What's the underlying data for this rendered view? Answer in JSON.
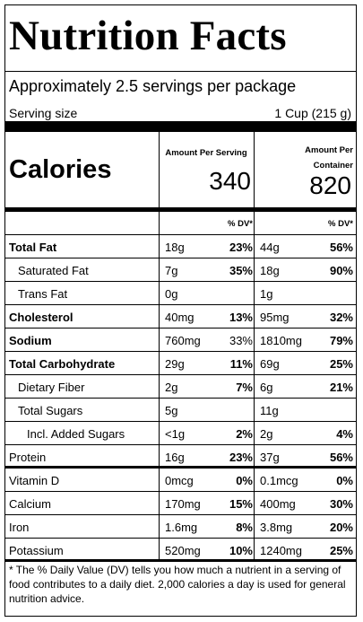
{
  "title": "Nutrition Facts",
  "servings_per_package": "Approximately 2.5 servings per package",
  "serving_size_label": "Serving size",
  "serving_size_value": "1 Cup (215 g)",
  "calories_label": "Calories",
  "col1_header": "Amount Per Serving",
  "col2_header_line1": "Amount Per",
  "col2_header_line2": "Container",
  "calories_per_serving": "340",
  "calories_per_container": "820",
  "dv_header": "% DV*",
  "nutrients": [
    {
      "name": "Total Fat",
      "amt1": "18g",
      "dv1": "23%",
      "amt2": "44g",
      "dv2": "56%"
    },
    {
      "name": "Saturated Fat",
      "amt1": "7g",
      "dv1": "35%",
      "amt2": "18g",
      "dv2": "90%"
    },
    {
      "name": "Trans Fat",
      "amt1": "0g",
      "dv1": "",
      "amt2": "1g",
      "dv2": ""
    },
    {
      "name": "Cholesterol",
      "amt1": "40mg",
      "dv1": "13%",
      "amt2": "95mg",
      "dv2": "32%"
    },
    {
      "name": "Sodium",
      "amt1": "760mg",
      "dv1": "33%",
      "amt2": "1810mg",
      "dv2": "79%"
    },
    {
      "name": "Total Carbohydrate",
      "amt1": "29g",
      "dv1": "11%",
      "amt2": "69g",
      "dv2": "25%"
    },
    {
      "name": "Dietary Fiber",
      "amt1": "2g",
      "dv1": "7%",
      "amt2": "6g",
      "dv2": "21%"
    },
    {
      "name": "Total Sugars",
      "amt1": "5g",
      "dv1": "",
      "amt2": "11g",
      "dv2": ""
    },
    {
      "name": "Incl. Added Sugars",
      "amt1": "<1g",
      "dv1": "2%",
      "amt2": "2g",
      "dv2": "4%"
    },
    {
      "name": "Protein",
      "amt1": "16g",
      "dv1": "23%",
      "amt2": "37g",
      "dv2": "56%"
    },
    {
      "name": "Vitamin D",
      "amt1": "0mcg",
      "dv1": "0%",
      "amt2": "0.1mcg",
      "dv2": "0%"
    },
    {
      "name": "Calcium",
      "amt1": "170mg",
      "dv1": "15%",
      "amt2": "400mg",
      "dv2": "30%"
    },
    {
      "name": "Iron",
      "amt1": "1.6mg",
      "dv1": "8%",
      "amt2": "3.8mg",
      "dv2": "20%"
    },
    {
      "name": "Potassium",
      "amt1": "520mg",
      "dv1": "10%",
      "amt2": "1240mg",
      "dv2": "25%"
    }
  ],
  "footnote": "* The % Daily Value (DV) tells you how much a nutrient in a serving of food contributes to a daily diet. 2,000 calories a day is used for general nutrition advice."
}
